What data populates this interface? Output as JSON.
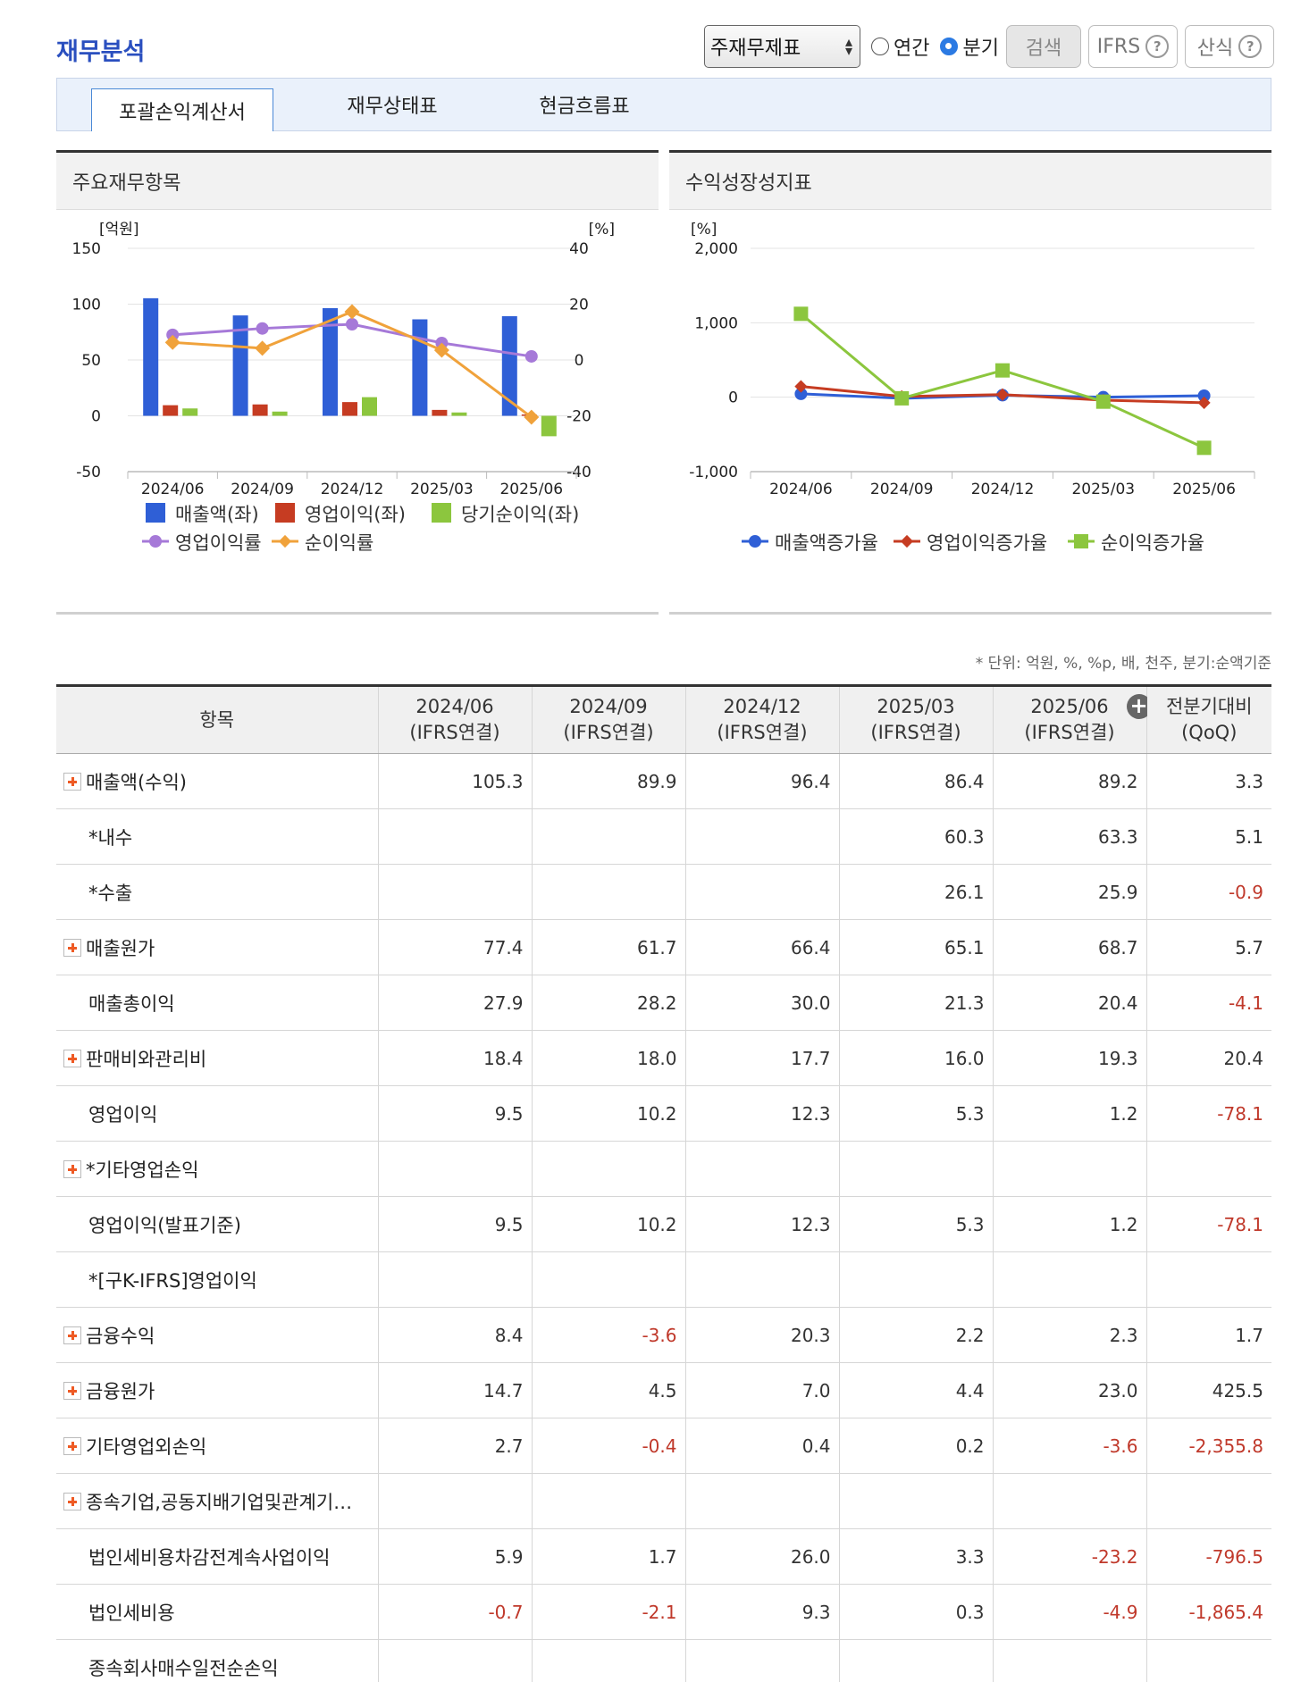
{
  "page_title": "재무분석",
  "controls": {
    "select_value": "주재무제표",
    "radio_annual": "연간",
    "radio_quarter": "분기",
    "search": "검색",
    "ifrs": "IFRS",
    "formula": "산식",
    "help": "?"
  },
  "tabs": [
    "포괄손익계산서",
    "재무상태표",
    "현금흐름표"
  ],
  "panel_left": {
    "title": "주요재무항목",
    "legend": [
      "매출액(좌)",
      "영업이익(좌)",
      "당기순이익(좌)",
      "영업이익률",
      "순이익률"
    ]
  },
  "panel_right": {
    "title": "수익성장성지표",
    "legend": [
      "매출액증가율",
      "영업이익증가율",
      "순이익증가율"
    ]
  },
  "chart_data": [
    {
      "type": "bar",
      "categories": [
        "2024/06",
        "2024/09",
        "2024/12",
        "2025/03",
        "2025/06"
      ],
      "ylabel_left": "[억원]",
      "ylabel_right": "[%]",
      "ylim_left": [
        -50,
        150
      ],
      "ylim_right": [
        -40,
        40
      ],
      "yticks_left": [
        "150",
        "100",
        "50",
        "0",
        "-50"
      ],
      "yticks_right": [
        "40",
        "20",
        "0",
        "-20",
        "-40"
      ],
      "series": [
        {
          "name": "매출액(좌)",
          "type": "bar",
          "axis": "left",
          "color": "#2f5fd6",
          "values": [
            105.3,
            89.9,
            96.4,
            86.4,
            89.2
          ]
        },
        {
          "name": "영업이익(좌)",
          "type": "bar",
          "axis": "left",
          "color": "#c63c22",
          "values": [
            9.5,
            10.2,
            12.3,
            5.3,
            1.2
          ]
        },
        {
          "name": "당기순이익(좌)",
          "type": "bar",
          "axis": "left",
          "color": "#8cc63e",
          "values": [
            6.6,
            3.8,
            16.7,
            3.0,
            -18.3
          ]
        },
        {
          "name": "영업이익률",
          "type": "line",
          "axis": "right",
          "color": "#a679d8",
          "values": [
            9.0,
            11.3,
            12.8,
            6.1,
            1.3
          ]
        },
        {
          "name": "순이익률",
          "type": "line",
          "axis": "right",
          "color": "#f0a23b",
          "values": [
            6.3,
            4.2,
            17.3,
            3.5,
            -20.5
          ]
        }
      ],
      "legend_position": "bottom",
      "grid": true
    },
    {
      "type": "line",
      "categories": [
        "2024/06",
        "2024/09",
        "2024/12",
        "2025/03",
        "2025/06"
      ],
      "ylabel": "[%]",
      "ylim": [
        -1000,
        2000
      ],
      "yticks": [
        "2,000",
        "1,000",
        "0",
        "-1,000"
      ],
      "series": [
        {
          "name": "매출액증가율",
          "color": "#2f5fd6",
          "values": [
            45,
            -15,
            27,
            0,
            20
          ]
        },
        {
          "name": "영업이익증가율",
          "color": "#c63c22",
          "values": [
            145,
            10,
            35,
            -40,
            -75
          ]
        },
        {
          "name": "순이익증가율",
          "color": "#8cc63e",
          "values": [
            1120,
            -15,
            360,
            -60,
            -680
          ]
        }
      ],
      "legend_position": "bottom",
      "grid": true
    }
  ],
  "unit_note": "* 단위: 억원, %, %p, 배, 천주, 분기:순액기준",
  "table": {
    "headers": [
      {
        "a": "항목",
        "b": ""
      },
      {
        "a": "2024/06",
        "b": "(IFRS연결)"
      },
      {
        "a": "2024/09",
        "b": "(IFRS연결)"
      },
      {
        "a": "2024/12",
        "b": "(IFRS연결)"
      },
      {
        "a": "2025/03",
        "b": "(IFRS연결)"
      },
      {
        "a": "2025/06",
        "b": "(IFRS연결)"
      },
      {
        "a": "전분기대비",
        "b": "(QoQ)"
      }
    ],
    "add_icon": "+",
    "rows": [
      {
        "label": "매출액(수익)",
        "expand": true,
        "cells": [
          "105.3",
          "89.9",
          "96.4",
          "86.4",
          "89.2",
          "3.3"
        ]
      },
      {
        "label": "*내수",
        "expand": false,
        "cells": [
          "",
          "",
          "",
          "60.3",
          "63.3",
          "5.1"
        ]
      },
      {
        "label": "*수출",
        "expand": false,
        "cells": [
          "",
          "",
          "",
          "26.1",
          "25.9",
          "-0.9"
        ]
      },
      {
        "label": "매출원가",
        "expand": true,
        "cells": [
          "77.4",
          "61.7",
          "66.4",
          "65.1",
          "68.7",
          "5.7"
        ]
      },
      {
        "label": "매출총이익",
        "expand": false,
        "cells": [
          "27.9",
          "28.2",
          "30.0",
          "21.3",
          "20.4",
          "-4.1"
        ]
      },
      {
        "label": "판매비와관리비",
        "expand": true,
        "cells": [
          "18.4",
          "18.0",
          "17.7",
          "16.0",
          "19.3",
          "20.4"
        ]
      },
      {
        "label": "영업이익",
        "expand": false,
        "cells": [
          "9.5",
          "10.2",
          "12.3",
          "5.3",
          "1.2",
          "-78.1"
        ]
      },
      {
        "label": "*기타영업손익",
        "expand": true,
        "cells": [
          "",
          "",
          "",
          "",
          "",
          ""
        ]
      },
      {
        "label": "영업이익(발표기준)",
        "expand": false,
        "cells": [
          "9.5",
          "10.2",
          "12.3",
          "5.3",
          "1.2",
          "-78.1"
        ]
      },
      {
        "label": "*[구K-IFRS]영업이익",
        "expand": false,
        "cells": [
          "",
          "",
          "",
          "",
          "",
          ""
        ]
      },
      {
        "label": "금융수익",
        "expand": true,
        "cells": [
          "8.4",
          "-3.6",
          "20.3",
          "2.2",
          "2.3",
          "1.7"
        ]
      },
      {
        "label": "금융원가",
        "expand": true,
        "cells": [
          "14.7",
          "4.5",
          "7.0",
          "4.4",
          "23.0",
          "425.5"
        ]
      },
      {
        "label": "기타영업외손익",
        "expand": true,
        "cells": [
          "2.7",
          "-0.4",
          "0.4",
          "0.2",
          "-3.6",
          "-2,355.8"
        ]
      },
      {
        "label": "종속기업,공동지배기업및관계기…",
        "expand": true,
        "cells": [
          "",
          "",
          "",
          "",
          "",
          ""
        ]
      },
      {
        "label": "법인세비용차감전계속사업이익",
        "expand": false,
        "cells": [
          "5.9",
          "1.7",
          "26.0",
          "3.3",
          "-23.2",
          "-796.5"
        ]
      },
      {
        "label": "법인세비용",
        "expand": false,
        "cells": [
          "-0.7",
          "-2.1",
          "9.3",
          "0.3",
          "-4.9",
          "-1,865.4"
        ]
      },
      {
        "label": "종속회사매수일전순손익",
        "expand": false,
        "cells": [
          "",
          "",
          "",
          "",
          "",
          ""
        ]
      }
    ]
  }
}
